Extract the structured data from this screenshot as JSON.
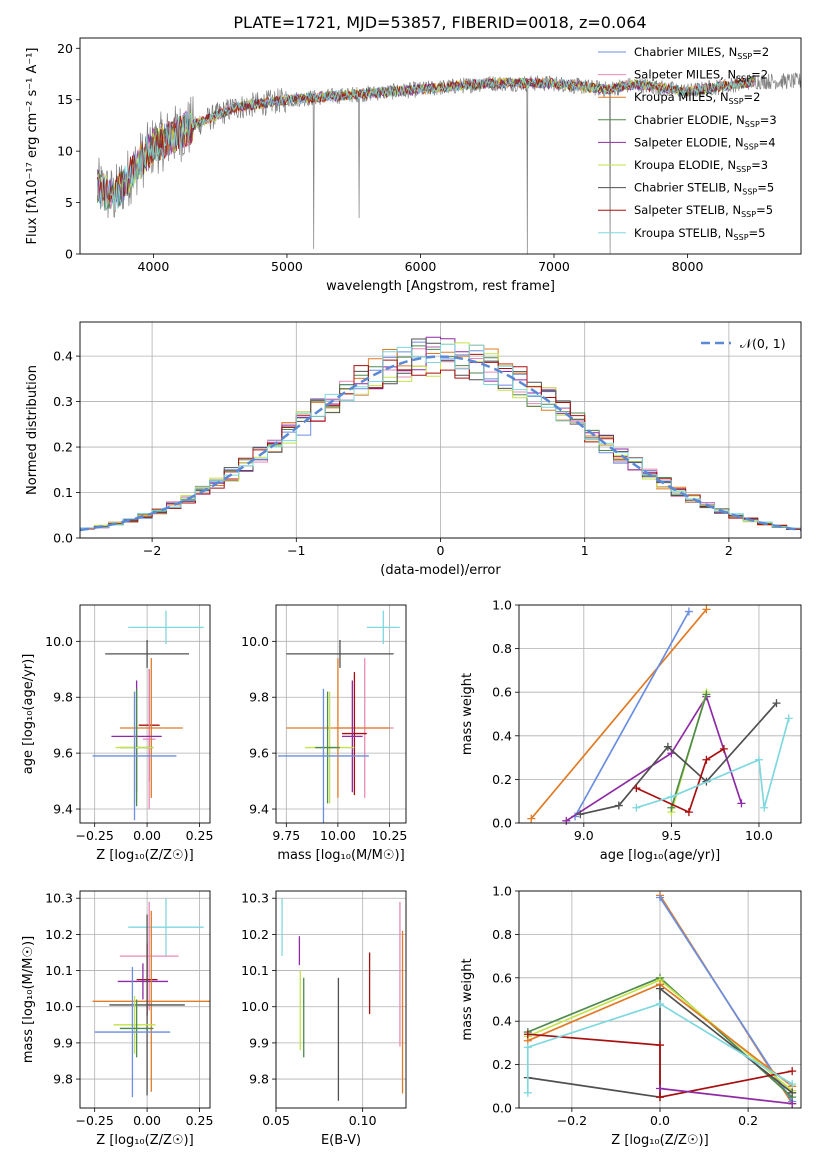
{
  "figure": {
    "title": "PLATE=1721, MJD=53857, FIBERID=0018, z=0.064"
  },
  "colors": {
    "ChabrierMILES": "#6b8ee0",
    "SalpeterMILES": "#e88ab6",
    "KroupaMILES": "#e07b26",
    "ChabrierELODIE": "#4e8a4e",
    "SalpeterELODIE": "#8e2ba4",
    "KroupaELODIE": "#c3e34a",
    "ChabrierSTELIB": "#505050",
    "SalpeterSTELIB": "#a81010",
    "KroupaSTELIB": "#7fd8de",
    "data": "#7f7f7f",
    "normal": "#5a8ad6"
  },
  "chart_data": [
    {
      "id": "spectrum",
      "type": "line",
      "xlabel": "wavelength [Angstrom, rest frame]",
      "ylabel": "Flux [fλ10⁻¹⁷ erg cm⁻² s⁻¹ A⁻¹]",
      "xlim": [
        3450,
        8850
      ],
      "ylim": [
        0,
        21
      ],
      "xticks": [
        "4000",
        "5000",
        "6000",
        "7000",
        "8000"
      ],
      "yticks": [
        "0",
        "5",
        "10",
        "15",
        "20"
      ],
      "legend_position": "top-right",
      "legend": [
        {
          "key": "ChabrierMILES",
          "label": "Chabrier MILES, N",
          "sub": "SSP",
          "tail": "=2"
        },
        {
          "key": "SalpeterMILES",
          "label": "Salpeter MILES, N",
          "sub": "SSP",
          "tail": "=2"
        },
        {
          "key": "KroupaMILES",
          "label": "Kroupa MILES, N",
          "sub": "SSP",
          "tail": "=2"
        },
        {
          "key": "ChabrierELODIE",
          "label": "Chabrier ELODIE, N",
          "sub": "SSP",
          "tail": "=3"
        },
        {
          "key": "SalpeterELODIE",
          "label": "Salpeter ELODIE, N",
          "sub": "SSP",
          "tail": "=4"
        },
        {
          "key": "KroupaELODIE",
          "label": "Kroupa ELODIE, N",
          "sub": "SSP",
          "tail": "=3"
        },
        {
          "key": "ChabrierSTELIB",
          "label": "Chabrier STELIB, N",
          "sub": "SSP",
          "tail": "=5"
        },
        {
          "key": "SalpeterSTELIB",
          "label": "Salpeter STELIB, N",
          "sub": "SSP",
          "tail": "=5"
        },
        {
          "key": "KroupaSTELIB",
          "label": "Kroupa STELIB, N",
          "sub": "SSP",
          "tail": "=5"
        }
      ],
      "continuum_knots": [
        [
          3580,
          6.5
        ],
        [
          3700,
          5.5
        ],
        [
          3900,
          9.0
        ],
        [
          4000,
          10.5
        ],
        [
          4300,
          12.5
        ],
        [
          4600,
          14.2
        ],
        [
          5000,
          15.0
        ],
        [
          5500,
          15.5
        ],
        [
          6000,
          16.0
        ],
        [
          6500,
          16.6
        ],
        [
          7000,
          16.6
        ],
        [
          7400,
          16.0
        ],
        [
          7600,
          16.5
        ],
        [
          8000,
          15.8
        ],
        [
          8500,
          16.8
        ]
      ],
      "absorption_spikes": [
        [
          5200,
          0.5
        ],
        [
          5540,
          3.5
        ],
        [
          6800,
          0.0
        ],
        [
          7420,
          0.0
        ]
      ]
    },
    {
      "id": "residuals",
      "type": "histogram",
      "xlabel": "(data-model)/error",
      "ylabel": "Normed distribution",
      "xlim": [
        -2.5,
        2.5
      ],
      "ylim": [
        0,
        0.475
      ],
      "xticks": [
        "−2",
        "−1",
        "0",
        "1",
        "2"
      ],
      "yticks": [
        "0.0",
        "0.1",
        "0.2",
        "0.3",
        "0.4"
      ],
      "legend": {
        "label": "𝒩(0, 1)",
        "position": "top-right"
      },
      "bin_width": 0.1
    },
    {
      "id": "age-vs-Z",
      "type": "errorbar",
      "xlabel": "Z [log₁₀(Z/Z☉)]",
      "ylabel": "age [log₁₀(age/yr)]",
      "xlim": [
        -0.32,
        0.3
      ],
      "ylim": [
        9.35,
        10.13
      ],
      "xticks": [
        "−0.25",
        "0.00",
        "0.25"
      ],
      "yticks": [
        "9.4",
        "9.6",
        "9.8",
        "10.0"
      ],
      "points": [
        {
          "key": "KroupaSTELIB",
          "x": 0.09,
          "y": 10.05,
          "xerr": 0.18,
          "yerr": 0.06
        },
        {
          "key": "ChabrierSTELIB",
          "x": 0.0,
          "y": 9.955,
          "xerr": 0.2,
          "yerr": 0.05
        },
        {
          "key": "SalpeterSTELIB",
          "x": 0.01,
          "y": 9.7,
          "xerr": 0.05,
          "yerr": 0.2
        },
        {
          "key": "SalpeterMILES",
          "x": 0.01,
          "y": 9.65,
          "xerr": 0.03,
          "yerr": 0.25
        },
        {
          "key": "KroupaMILES",
          "x": 0.02,
          "y": 9.69,
          "xerr": 0.15,
          "yerr": 0.25
        },
        {
          "key": "SalpeterELODIE",
          "x": -0.05,
          "y": 9.66,
          "xerr": 0.12,
          "yerr": 0.2
        },
        {
          "key": "ChabrierELODIE",
          "x": -0.05,
          "y": 9.62,
          "xerr": 0.08,
          "yerr": 0.21
        },
        {
          "key": "KroupaELODIE",
          "x": -0.06,
          "y": 9.62,
          "xerr": 0.09,
          "yerr": 0.2
        },
        {
          "key": "ChabrierMILES",
          "x": -0.06,
          "y": 9.59,
          "xerr": 0.2,
          "yerr": 0.23
        }
      ]
    },
    {
      "id": "age-vs-mass",
      "type": "errorbar",
      "xlabel": "mass [log₁₀(M/M☉)]",
      "xlim": [
        9.7,
        10.33
      ],
      "ylim": [
        9.35,
        10.13
      ],
      "xticks": [
        "9.75",
        "10.00",
        "10.25"
      ],
      "yticks": [
        "9.4",
        "9.6",
        "9.8",
        "10.0"
      ],
      "points": [
        {
          "key": "KroupaSTELIB",
          "x": 10.22,
          "y": 10.05,
          "xerr": 0.08,
          "yerr": 0.06
        },
        {
          "key": "ChabrierSTELIB",
          "x": 10.01,
          "y": 9.955,
          "xerr": 0.26,
          "yerr": 0.05
        },
        {
          "key": "SalpeterMILES",
          "x": 10.13,
          "y": 9.69,
          "xerr": 0.14,
          "yerr": 0.25
        },
        {
          "key": "KroupaMILES",
          "x": 10.0,
          "y": 9.69,
          "xerr": 0.25,
          "yerr": 0.25
        },
        {
          "key": "SalpeterSTELIB",
          "x": 10.08,
          "y": 9.67,
          "xerr": 0.06,
          "yerr": 0.22
        },
        {
          "key": "SalpeterELODIE",
          "x": 10.07,
          "y": 9.66,
          "xerr": 0.05,
          "yerr": 0.2
        },
        {
          "key": "KroupaELODIE",
          "x": 9.96,
          "y": 9.62,
          "xerr": 0.12,
          "yerr": 0.2
        },
        {
          "key": "ChabrierELODIE",
          "x": 9.95,
          "y": 9.62,
          "xerr": 0.06,
          "yerr": 0.2
        },
        {
          "key": "ChabrierMILES",
          "x": 9.93,
          "y": 9.59,
          "xerr": 0.22,
          "yerr": 0.24
        }
      ]
    },
    {
      "id": "weight-vs-age",
      "type": "line",
      "xlabel": "age [log₁₀(age/yr)]",
      "ylabel": "mass weight",
      "xlim": [
        8.63,
        10.24
      ],
      "ylim": [
        0,
        1
      ],
      "xticks": [
        "9.0",
        "9.5",
        "10.0"
      ],
      "xtick_values": [
        9.0,
        9.5,
        10.0
      ],
      "yticks": [
        "0.0",
        "0.2",
        "0.4",
        "0.6",
        "0.8",
        "1.0"
      ],
      "series": [
        {
          "key": "KroupaMILES",
          "points": [
            [
              8.7,
              0.02
            ],
            [
              9.7,
              0.98
            ]
          ]
        },
        {
          "key": "ChabrierMILES",
          "points": [
            [
              8.95,
              0.03
            ],
            [
              9.6,
              0.97
            ]
          ]
        },
        {
          "key": "SalpeterELODIE",
          "points": [
            [
              8.9,
              0.01
            ],
            [
              9.5,
              0.32
            ],
            [
              9.7,
              0.58
            ],
            [
              9.9,
              0.09
            ]
          ]
        },
        {
          "key": "KroupaELODIE",
          "points": [
            [
              9.5,
              0.05
            ],
            [
              9.7,
              0.6
            ]
          ]
        },
        {
          "key": "ChabrierELODIE",
          "points": [
            [
              9.5,
              0.07
            ],
            [
              9.7,
              0.59
            ]
          ]
        },
        {
          "key": "ChabrierSTELIB",
          "points": [
            [
              8.98,
              0.04
            ],
            [
              9.2,
              0.08
            ],
            [
              9.48,
              0.35
            ],
            [
              9.7,
              0.19
            ],
            [
              10.1,
              0.55
            ]
          ]
        },
        {
          "key": "SalpeterSTELIB",
          "points": [
            [
              9.3,
              0.16
            ],
            [
              9.6,
              0.05
            ],
            [
              9.7,
              0.29
            ],
            [
              9.8,
              0.34
            ]
          ]
        },
        {
          "key": "KroupaSTELIB",
          "points": [
            [
              9.3,
              0.07
            ],
            [
              9.5,
              0.12
            ],
            [
              10.0,
              0.29
            ],
            [
              10.03,
              0.07
            ],
            [
              10.17,
              0.48
            ]
          ]
        }
      ]
    },
    {
      "id": "mass-vs-Z",
      "type": "errorbar",
      "xlabel": "Z [log₁₀(Z/Z☉)]",
      "ylabel": "mass [log₁₀(M/M☉)]",
      "xlim": [
        -0.32,
        0.3
      ],
      "ylim": [
        9.72,
        10.32
      ],
      "xticks": [
        "−0.25",
        "0.00",
        "0.25"
      ],
      "yticks": [
        "9.8",
        "9.9",
        "10.0",
        "10.1",
        "10.2",
        "10.3"
      ],
      "points": [
        {
          "key": "KroupaSTELIB",
          "x": 0.09,
          "y": 10.22,
          "xerr": 0.18,
          "yerr": 0.08
        },
        {
          "key": "SalpeterMILES",
          "x": 0.01,
          "y": 10.14,
          "xerr": 0.14,
          "yerr": 0.15
        },
        {
          "key": "SalpeterSTELIB",
          "x": 0.0,
          "y": 10.075,
          "xerr": 0.05,
          "yerr": 0.1
        },
        {
          "key": "SalpeterELODIE",
          "x": -0.02,
          "y": 10.07,
          "xerr": 0.12,
          "yerr": 0.05
        },
        {
          "key": "KroupaMILES",
          "x": 0.02,
          "y": 10.015,
          "xerr": 0.28,
          "yerr": 0.25
        },
        {
          "key": "ChabrierSTELIB",
          "x": 0.0,
          "y": 10.005,
          "xerr": 0.18,
          "yerr": 0.25
        },
        {
          "key": "KroupaELODIE",
          "x": -0.06,
          "y": 9.95,
          "xerr": 0.1,
          "yerr": 0.08
        },
        {
          "key": "ChabrierELODIE",
          "x": -0.05,
          "y": 9.94,
          "xerr": 0.08,
          "yerr": 0.08
        },
        {
          "key": "ChabrierMILES",
          "x": -0.07,
          "y": 9.93,
          "xerr": 0.18,
          "yerr": 0.18
        }
      ]
    },
    {
      "id": "mass-vs-ebv",
      "type": "errorbar",
      "xlabel": "E(B-V)",
      "xlim": [
        0.05,
        0.125
      ],
      "ylim": [
        9.72,
        10.32
      ],
      "xticks": [
        "0.05",
        "0.10"
      ],
      "xtick_values": [
        0.05,
        0.1
      ],
      "yticks": [
        "9.8",
        "9.9",
        "10.0",
        "10.1",
        "10.2",
        "10.3"
      ],
      "points": [
        {
          "key": "KroupaSTELIB",
          "x": 0.0535,
          "y": 10.22,
          "xerr": 0,
          "yerr": 0.08
        },
        {
          "key": "SalpeterELODIE",
          "x": 0.0635,
          "y": 10.155,
          "xerr": 0,
          "yerr": 0.04
        },
        {
          "key": "KroupaELODIE",
          "x": 0.064,
          "y": 9.99,
          "xerr": 0,
          "yerr": 0.11
        },
        {
          "key": "ChabrierELODIE",
          "x": 0.066,
          "y": 9.97,
          "xerr": 0,
          "yerr": 0.11
        },
        {
          "key": "ChabrierSTELIB",
          "x": 0.086,
          "y": 9.91,
          "xerr": 0,
          "yerr": 0.17
        },
        {
          "key": "SalpeterSTELIB",
          "x": 0.104,
          "y": 10.065,
          "xerr": 0,
          "yerr": 0.085
        },
        {
          "key": "SalpeterMILES",
          "x": 0.1215,
          "y": 10.09,
          "xerr": 0,
          "yerr": 0.2
        },
        {
          "key": "KroupaMILES",
          "x": 0.123,
          "y": 9.985,
          "xerr": 0,
          "yerr": 0.225
        }
      ]
    },
    {
      "id": "weight-vs-Z",
      "type": "line",
      "xlabel": "Z [log₁₀(Z/Z☉)]",
      "ylabel": "mass weight",
      "xlim": [
        -0.32,
        0.32
      ],
      "ylim": [
        0,
        1
      ],
      "xticks": [
        "−0.2",
        "0.0",
        "0.2"
      ],
      "xtick_values": [
        -0.2,
        0.0,
        0.2
      ],
      "yticks": [
        "0.0",
        "0.2",
        "0.4",
        "0.6",
        "0.8",
        "1.0"
      ],
      "series": [
        {
          "key": "KroupaMILES",
          "points": [
            [
              0.0,
              0.98
            ],
            [
              0.3,
              0.02
            ]
          ]
        },
        {
          "key": "ChabrierMILES",
          "points": [
            [
              0.0,
              0.97
            ],
            [
              0.3,
              0.03
            ]
          ]
        },
        {
          "key": "ChabrierELODIE",
          "points": [
            [
              -0.3,
              0.35
            ],
            [
              0.0,
              0.6
            ],
            [
              0.3,
              0.05
            ]
          ]
        },
        {
          "key": "KroupaELODIE",
          "points": [
            [
              -0.3,
              0.33
            ],
            [
              0.0,
              0.59
            ],
            [
              0.3,
              0.08
            ]
          ]
        },
        {
          "key": "KroupaMILES",
          "points": [
            [
              -0.3,
              0.31
            ],
            [
              0.0,
              0.57
            ],
            [
              0.3,
              0.1
            ]
          ]
        },
        {
          "key": "ChabrierSTELIB",
          "points": [
            [
              -0.3,
              0.14
            ],
            [
              0.0,
              0.05
            ],
            [
              0.0,
              0.55
            ],
            [
              0.3,
              0.07
            ]
          ]
        },
        {
          "key": "SalpeterSTELIB",
          "points": [
            [
              -0.3,
              0.34
            ],
            [
              0.0,
              0.29
            ],
            [
              0.0,
              0.05
            ],
            [
              0.3,
              0.17
            ]
          ]
        },
        {
          "key": "SalpeterELODIE",
          "points": [
            [
              0.0,
              0.09
            ],
            [
              0.3,
              0.02
            ]
          ]
        },
        {
          "key": "KroupaSTELIB",
          "points": [
            [
              -0.3,
              0.07
            ],
            [
              -0.3,
              0.28
            ],
            [
              0.0,
              0.48
            ],
            [
              0.3,
              0.11
            ]
          ]
        }
      ]
    }
  ]
}
